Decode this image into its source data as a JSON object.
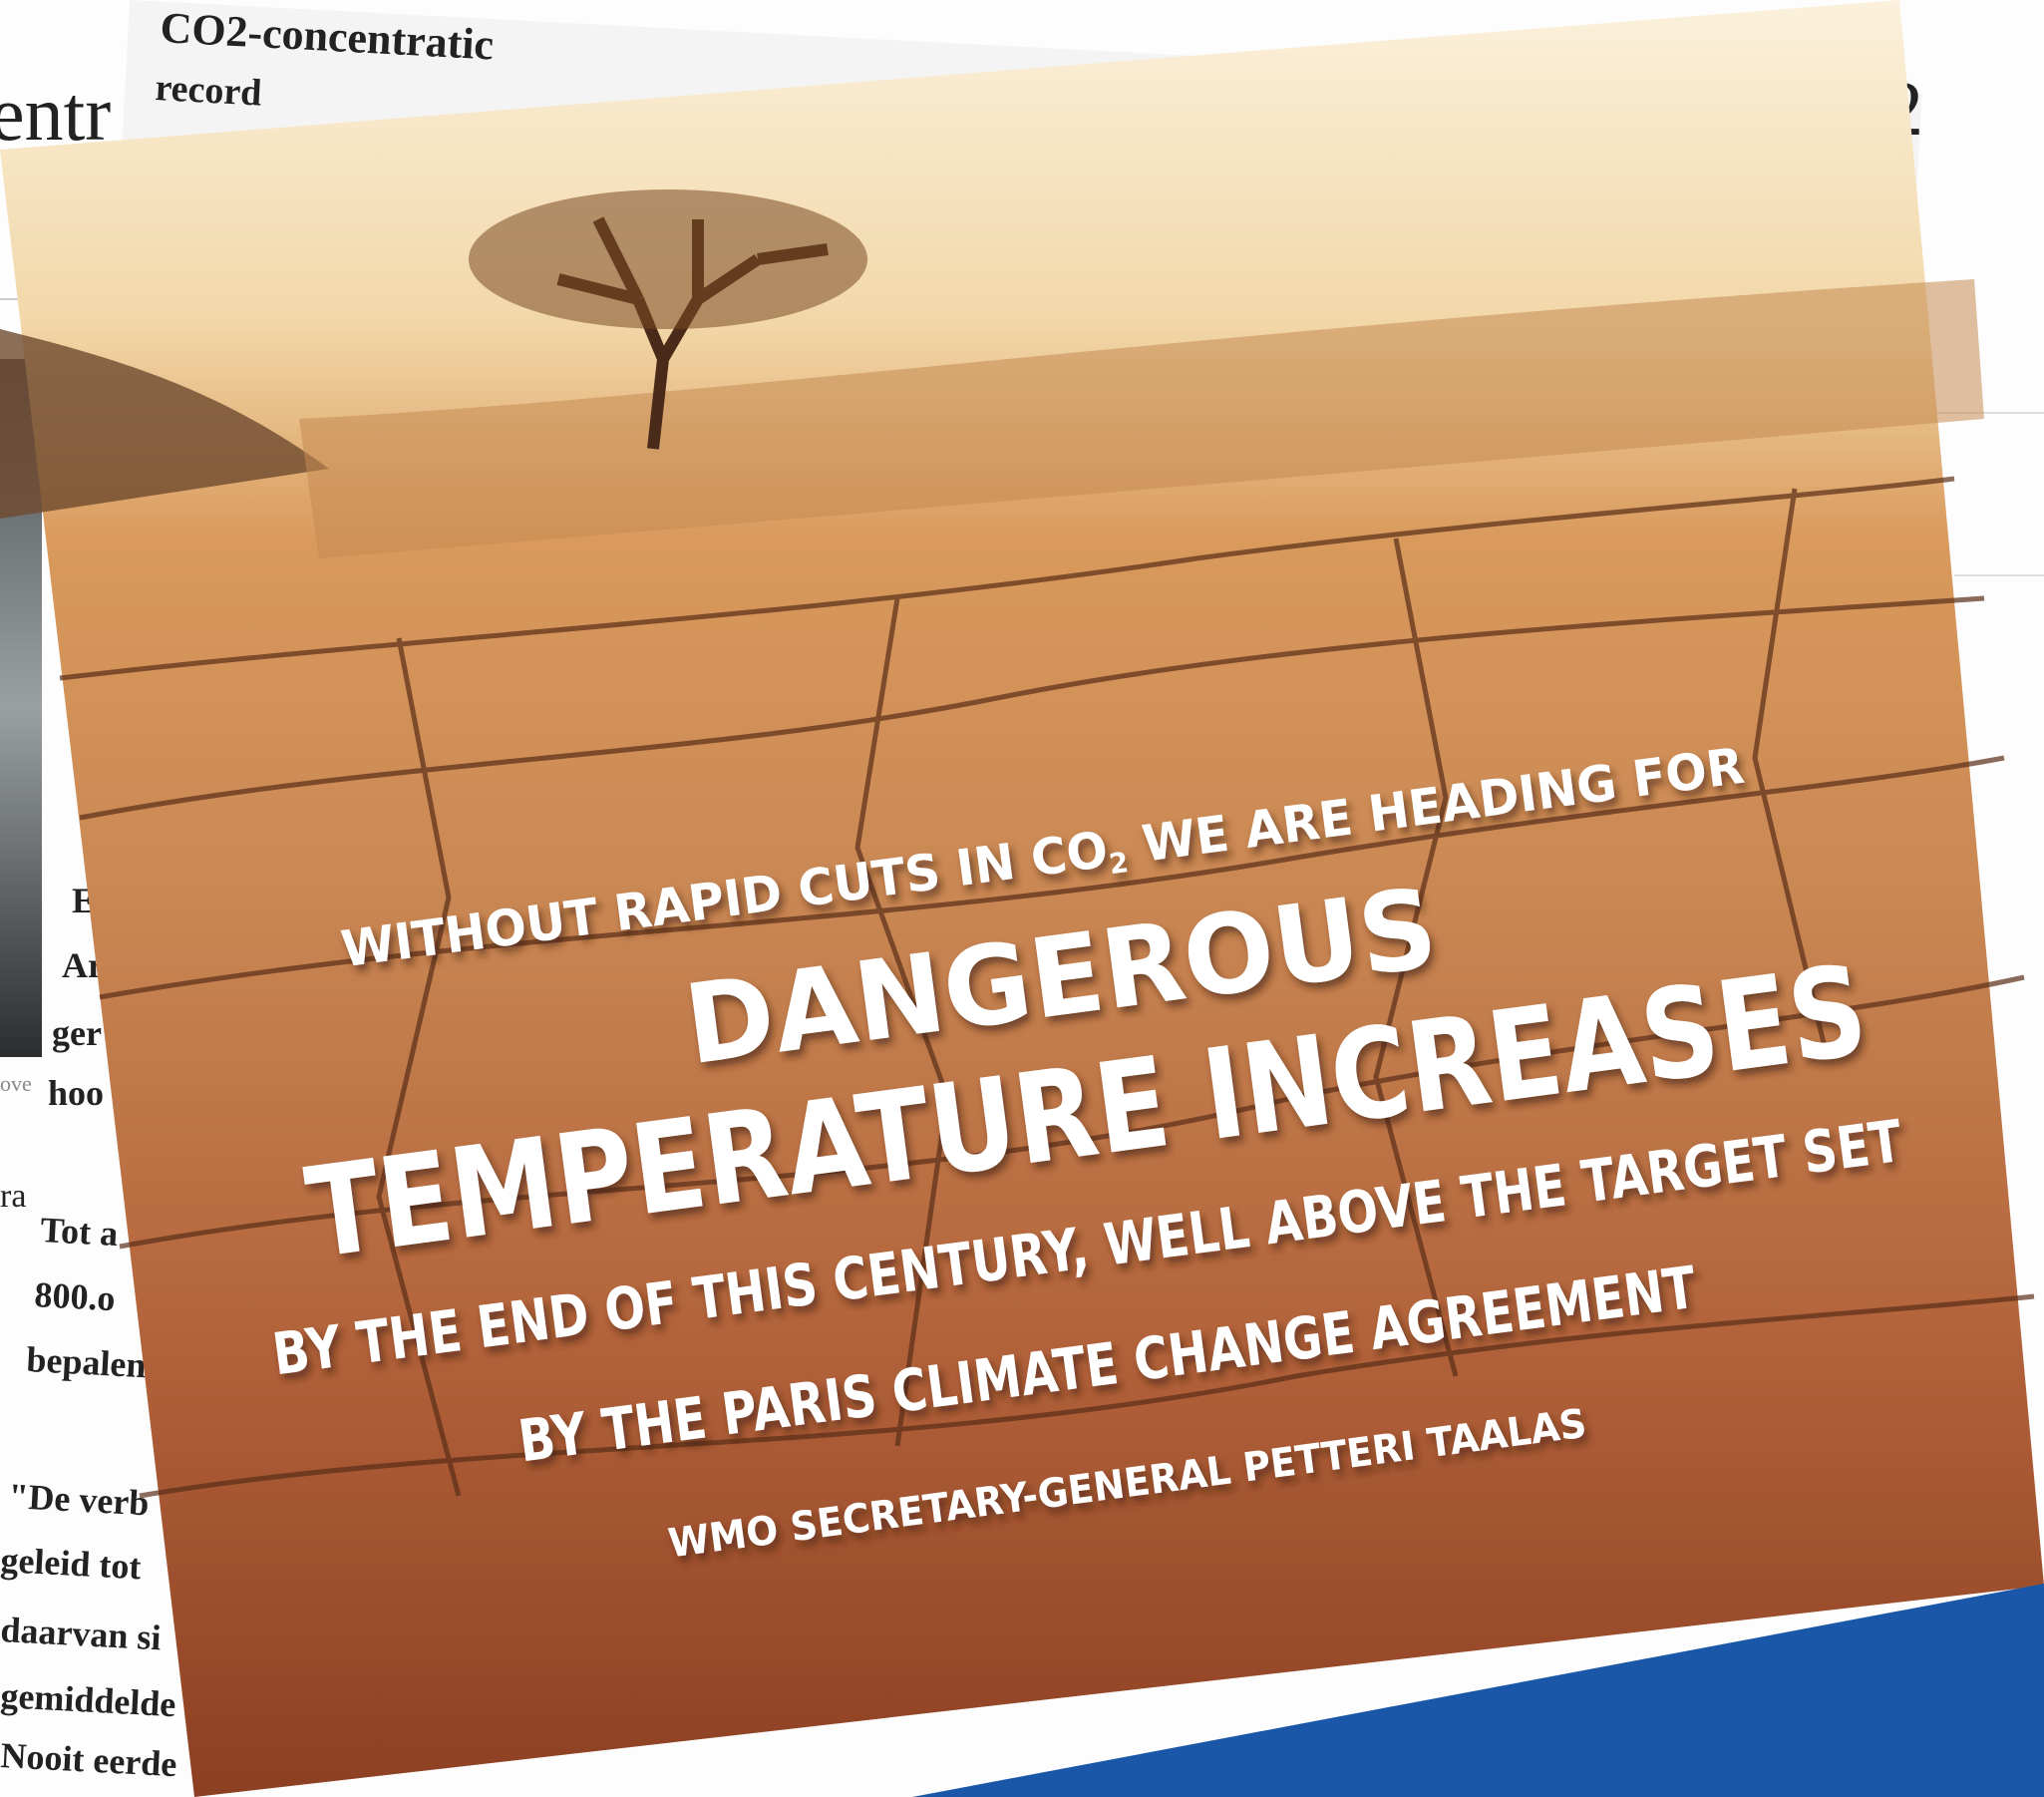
{
  "newspaper": {
    "headline": "CO2-concentratic",
    "subheadline": "record",
    "big_fragment": "entr",
    "big_digit": "2",
    "caption": "ove",
    "column_fragments": [
      "E",
      "Ar",
      "ger",
      "hoo"
    ],
    "side_fragment": "ra",
    "body_fragments": [
      "Tot a",
      "800.o",
      "bepalen",
      "\"De verb",
      "geleid tot",
      "daarvan si",
      "gemiddelde",
      "Nooit eerde"
    ]
  },
  "poster": {
    "line1_start": "WITHOUT RAPID CUTS IN CO",
    "line1_subscript": "2",
    "line1_end": " WE ARE HEADING FOR",
    "headline1": "DANGEROUS",
    "headline2": "TEMPERATURE INCREASES",
    "line3": "BY THE END OF THIS CENTURY, WELL ABOVE THE TARGET SET",
    "line4": "BY THE PARIS CLIMATE CHANGE AGREEMENT",
    "attribution": "WMO SECRETARY-GENERAL PETTERI TAALAS"
  }
}
